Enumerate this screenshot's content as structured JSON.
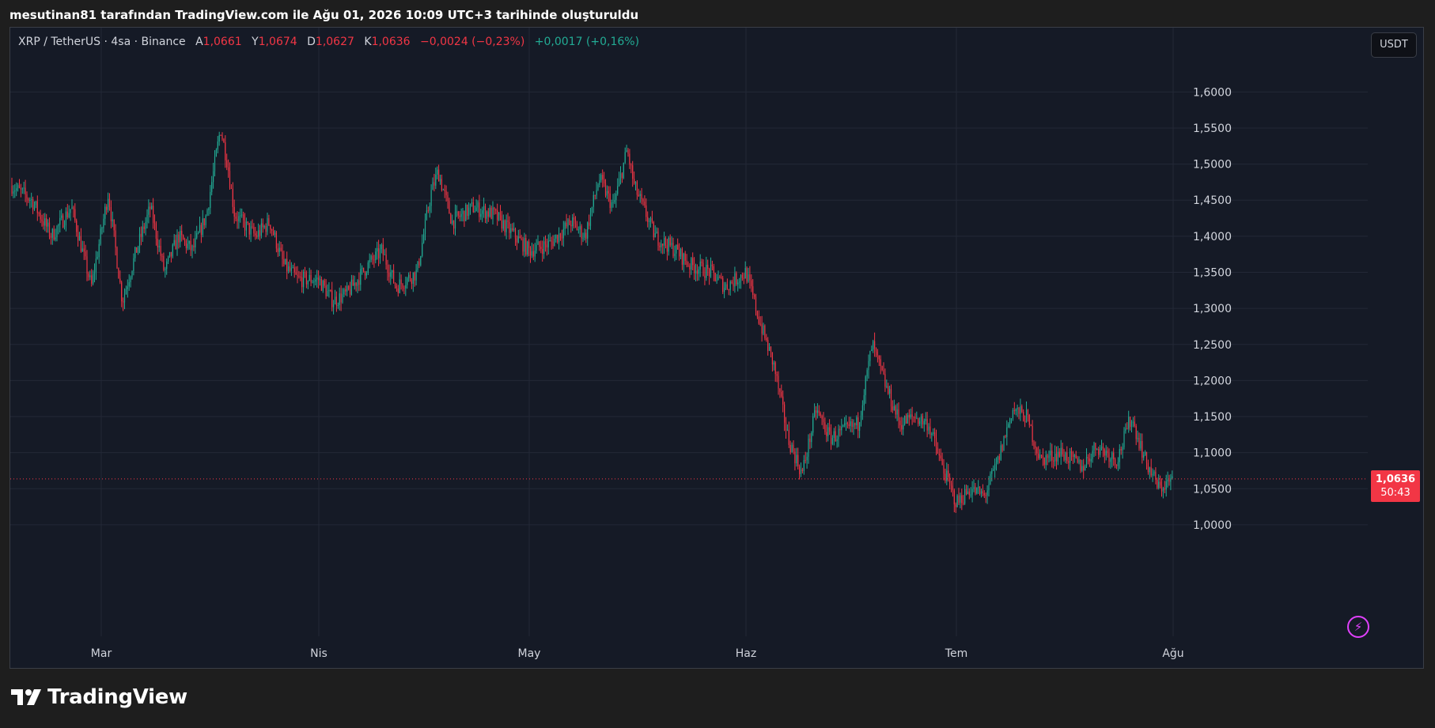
{
  "attribution": "mesutinan81 tarafından TradingView.com ile Ağu 01, 2026 10:09 UTC+3 tarihinde oluşturuldu",
  "legend": {
    "symbol": "XRP / TetherUS · 4sa · Binance",
    "open_label": "A",
    "open_value": "1,0661",
    "high_label": "Y",
    "high_value": "1,0674",
    "low_label": "D",
    "low_value": "1,0627",
    "close_label": "K",
    "close_value": "1,0636",
    "change": "−0,0024 (−0,23%)",
    "secondary_change": "+0,0017 (+0,16%)"
  },
  "unit_button": "USDT",
  "last_price": {
    "price": "1,0636",
    "countdown": "50:43"
  },
  "brand": "TradingView",
  "colors": {
    "up": "#22ab94",
    "down": "#f23645",
    "background": "#151a26",
    "grid": "#232836",
    "text": "#d1d4dc",
    "accent": "#e040fb"
  },
  "icons": {
    "alert": "lightning-bolt-icon",
    "logo": "tradingview-logo-icon"
  },
  "chart_data": {
    "type": "candlestick",
    "ylim": [
      0.955,
      1.665
    ],
    "grid": true,
    "y_ticks": [
      1.0,
      1.05,
      1.1,
      1.15,
      1.2,
      1.25,
      1.3,
      1.35,
      1.4,
      1.45,
      1.5,
      1.55,
      1.6
    ],
    "y_tick_labels": [
      "1,0000",
      "1,0500",
      "1,1000",
      "1,1500",
      "1,2000",
      "1,2500",
      "1,3000",
      "1,3500",
      "1,4000",
      "1,4500",
      "1,5000",
      "1,5500",
      "1,6000"
    ],
    "x_labels": [
      {
        "label": "Mar",
        "date": "2026-03-01"
      },
      {
        "label": "Nis",
        "date": "2026-04-01"
      },
      {
        "label": "May",
        "date": "2026-05-01"
      },
      {
        "label": "Haz",
        "date": "2026-06-01"
      },
      {
        "label": "Tem",
        "date": "2026-07-01"
      },
      {
        "label": "Ağu",
        "date": "2026-08-01"
      }
    ],
    "x_range": [
      "2026-02-20",
      "2026-08-01"
    ],
    "last_close": 1.0636,
    "price_path": [
      {
        "date": "2026-02-20",
        "close": 1.47
      },
      {
        "date": "2026-02-22",
        "close": 1.45
      },
      {
        "date": "2026-02-24",
        "close": 1.4
      },
      {
        "date": "2026-02-26",
        "close": 1.44
      },
      {
        "date": "2026-02-28",
        "close": 1.33
      },
      {
        "date": "2026-03-02",
        "close": 1.46
      },
      {
        "date": "2026-03-04",
        "close": 1.31
      },
      {
        "date": "2026-03-06",
        "close": 1.38
      },
      {
        "date": "2026-03-08",
        "close": 1.44
      },
      {
        "date": "2026-03-10",
        "close": 1.35
      },
      {
        "date": "2026-03-12",
        "close": 1.4
      },
      {
        "date": "2026-03-14",
        "close": 1.38
      },
      {
        "date": "2026-03-16",
        "close": 1.43
      },
      {
        "date": "2026-03-18",
        "close": 1.55
      },
      {
        "date": "2026-03-19",
        "close": 1.5
      },
      {
        "date": "2026-03-20",
        "close": 1.43
      },
      {
        "date": "2026-03-23",
        "close": 1.4
      },
      {
        "date": "2026-03-25",
        "close": 1.42
      },
      {
        "date": "2026-03-27",
        "close": 1.36
      },
      {
        "date": "2026-03-29",
        "close": 1.34
      },
      {
        "date": "2026-04-01",
        "close": 1.34
      },
      {
        "date": "2026-04-03",
        "close": 1.31
      },
      {
        "date": "2026-04-05",
        "close": 1.32
      },
      {
        "date": "2026-04-08",
        "close": 1.36
      },
      {
        "date": "2026-04-10",
        "close": 1.38
      },
      {
        "date": "2026-04-12",
        "close": 1.33
      },
      {
        "date": "2026-04-15",
        "close": 1.35
      },
      {
        "date": "2026-04-17",
        "close": 1.46
      },
      {
        "date": "2026-04-18",
        "close": 1.49
      },
      {
        "date": "2026-04-20",
        "close": 1.42
      },
      {
        "date": "2026-04-23",
        "close": 1.44
      },
      {
        "date": "2026-04-26",
        "close": 1.43
      },
      {
        "date": "2026-04-29",
        "close": 1.4
      },
      {
        "date": "2026-05-01",
        "close": 1.38
      },
      {
        "date": "2026-05-04",
        "close": 1.39
      },
      {
        "date": "2026-05-07",
        "close": 1.42
      },
      {
        "date": "2026-05-09",
        "close": 1.4
      },
      {
        "date": "2026-05-11",
        "close": 1.48
      },
      {
        "date": "2026-05-13",
        "close": 1.44
      },
      {
        "date": "2026-05-15",
        "close": 1.52
      },
      {
        "date": "2026-05-16",
        "close": 1.47
      },
      {
        "date": "2026-05-19",
        "close": 1.4
      },
      {
        "date": "2026-05-22",
        "close": 1.38
      },
      {
        "date": "2026-05-24",
        "close": 1.36
      },
      {
        "date": "2026-05-27",
        "close": 1.35
      },
      {
        "date": "2026-05-29",
        "close": 1.33
      },
      {
        "date": "2026-06-01",
        "close": 1.35
      },
      {
        "date": "2026-06-03",
        "close": 1.28
      },
      {
        "date": "2026-06-05",
        "close": 1.22
      },
      {
        "date": "2026-06-07",
        "close": 1.12
      },
      {
        "date": "2026-06-09",
        "close": 1.07
      },
      {
        "date": "2026-06-11",
        "close": 1.16
      },
      {
        "date": "2026-06-13",
        "close": 1.12
      },
      {
        "date": "2026-06-15",
        "close": 1.13
      },
      {
        "date": "2026-06-17",
        "close": 1.14
      },
      {
        "date": "2026-06-19",
        "close": 1.25
      },
      {
        "date": "2026-06-21",
        "close": 1.19
      },
      {
        "date": "2026-06-23",
        "close": 1.14
      },
      {
        "date": "2026-06-25",
        "close": 1.15
      },
      {
        "date": "2026-06-27",
        "close": 1.14
      },
      {
        "date": "2026-06-29",
        "close": 1.08
      },
      {
        "date": "2026-07-01",
        "close": 1.03
      },
      {
        "date": "2026-07-03",
        "close": 1.05
      },
      {
        "date": "2026-07-05",
        "close": 1.04
      },
      {
        "date": "2026-07-07",
        "close": 1.09
      },
      {
        "date": "2026-07-09",
        "close": 1.16
      },
      {
        "date": "2026-07-11",
        "close": 1.15
      },
      {
        "date": "2026-07-13",
        "close": 1.09
      },
      {
        "date": "2026-07-16",
        "close": 1.1
      },
      {
        "date": "2026-07-19",
        "close": 1.08
      },
      {
        "date": "2026-07-21",
        "close": 1.11
      },
      {
        "date": "2026-07-24",
        "close": 1.09
      },
      {
        "date": "2026-07-26",
        "close": 1.15
      },
      {
        "date": "2026-07-28",
        "close": 1.09
      },
      {
        "date": "2026-07-30",
        "close": 1.05
      },
      {
        "date": "2026-08-01",
        "close": 1.0636
      }
    ]
  }
}
